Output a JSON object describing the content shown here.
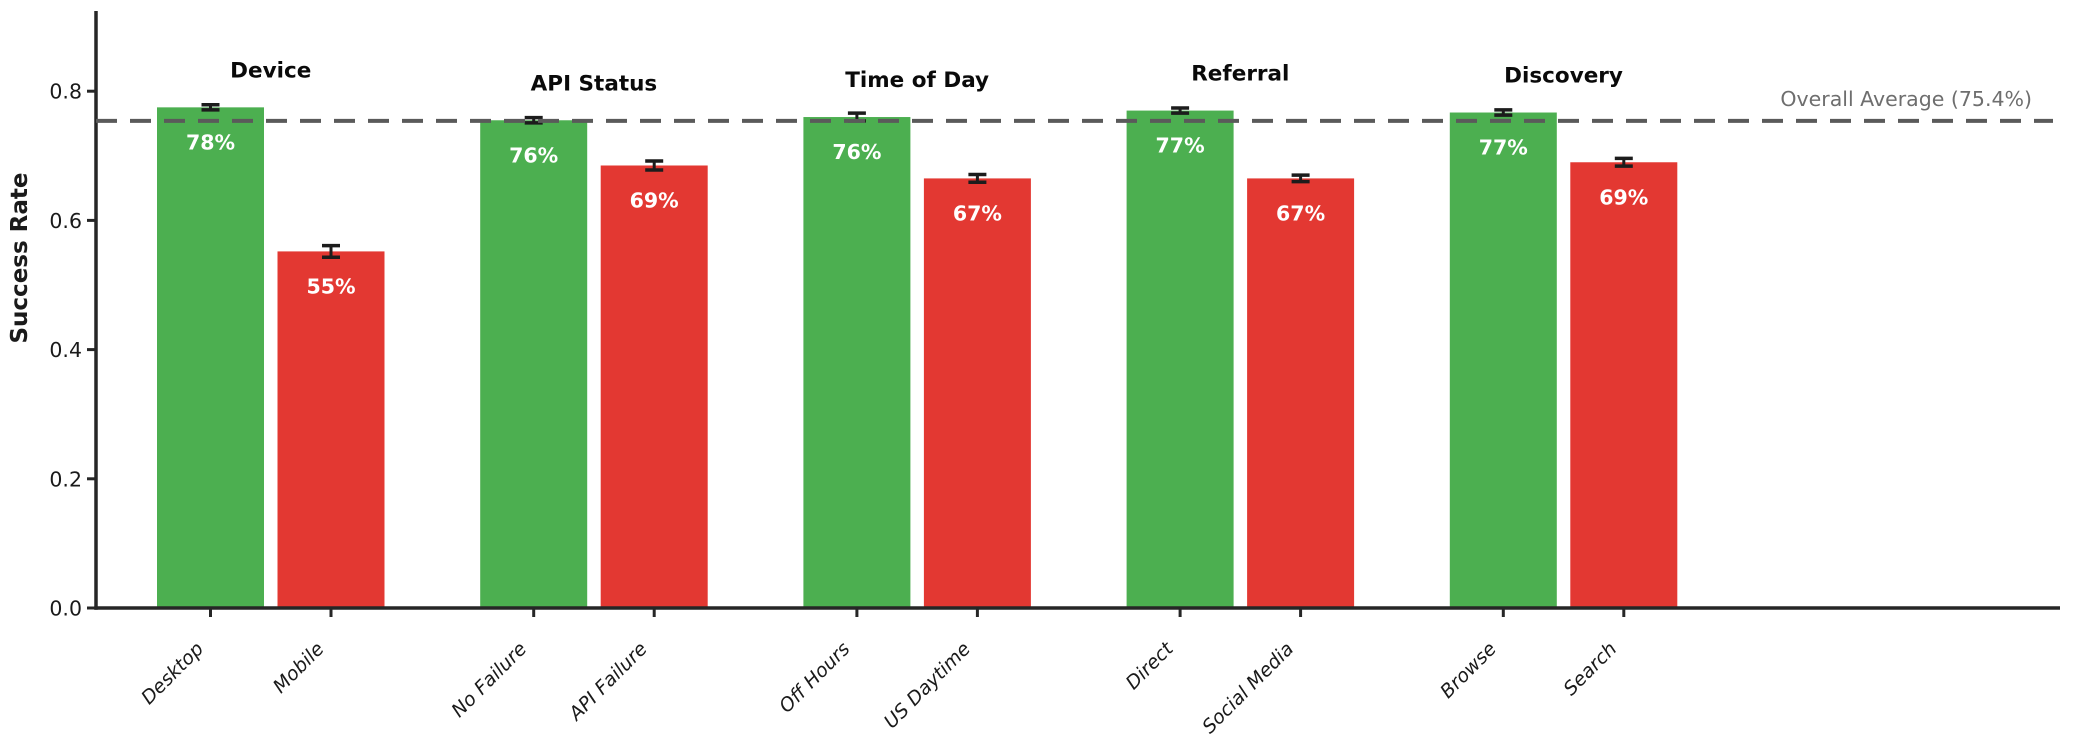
{
  "chart_data": {
    "type": "bar",
    "title": "",
    "ylabel": "Success Rate",
    "xlabel": "",
    "yticks": [
      0.0,
      0.2,
      0.4,
      0.6,
      0.8
    ],
    "ylim": [
      0,
      0.92
    ],
    "grid": false,
    "legend_position": "none",
    "average_line": {
      "value": 0.754,
      "label": "Overall Average (75.4%)"
    },
    "groups": [
      {
        "title": "Device",
        "bars": [
          {
            "label": "Desktop",
            "value": 0.775,
            "display": "78%",
            "error": 0.004,
            "role": "positive"
          },
          {
            "label": "Mobile",
            "value": 0.552,
            "display": "55%",
            "error": 0.009,
            "role": "negative"
          }
        ]
      },
      {
        "title": "API Status",
        "bars": [
          {
            "label": "No Failure",
            "value": 0.755,
            "display": "76%",
            "error": 0.004,
            "role": "positive"
          },
          {
            "label": "API Failure",
            "value": 0.685,
            "display": "69%",
            "error": 0.007,
            "role": "negative"
          }
        ]
      },
      {
        "title": "Time of Day",
        "bars": [
          {
            "label": "Off Hours",
            "value": 0.76,
            "display": "76%",
            "error": 0.006,
            "role": "positive"
          },
          {
            "label": "US Daytime",
            "value": 0.665,
            "display": "67%",
            "error": 0.006,
            "role": "negative"
          }
        ]
      },
      {
        "title": "Referral",
        "bars": [
          {
            "label": "Direct",
            "value": 0.77,
            "display": "77%",
            "error": 0.004,
            "role": "positive"
          },
          {
            "label": "Social Media",
            "value": 0.665,
            "display": "67%",
            "error": 0.005,
            "role": "negative"
          }
        ]
      },
      {
        "title": "Discovery",
        "bars": [
          {
            "label": "Browse",
            "value": 0.767,
            "display": "77%",
            "error": 0.004,
            "role": "positive"
          },
          {
            "label": "Search",
            "value": 0.69,
            "display": "69%",
            "error": 0.006,
            "role": "negative"
          }
        ]
      }
    ],
    "colors": {
      "positive": "#4caf50",
      "negative": "#e33832",
      "average_line": "#5a5a5a",
      "average_label": "#6e6e6e",
      "axis": "#262626",
      "tick_label": "#1a1a1a",
      "bar_value_label": "#ffffff",
      "group_title": "#0a0a0a",
      "error_bar": "#1c1c1c"
    }
  }
}
